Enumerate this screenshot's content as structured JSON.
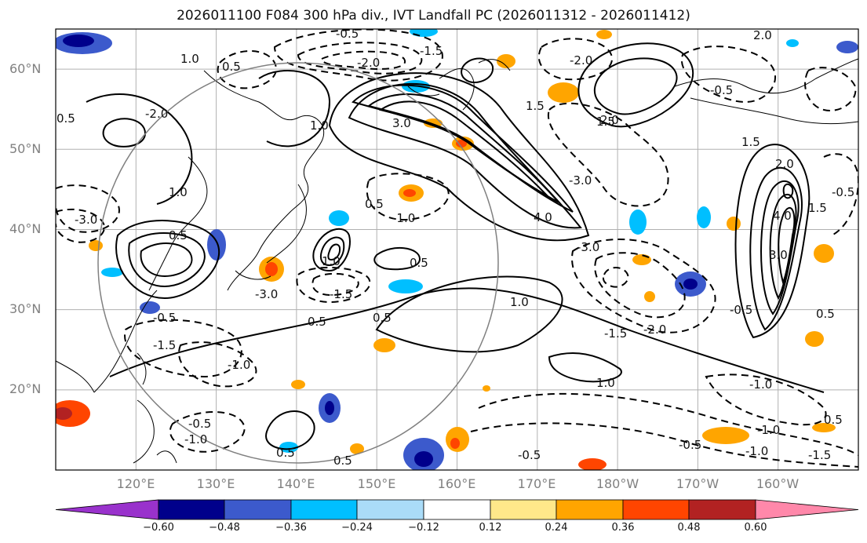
{
  "title": "2026011100 F084 300 hPa div., IVT Landfall PC (2026011312 - 2026011412)",
  "map": {
    "region": "North Pacific",
    "lat_range": [
      10,
      65
    ],
    "lon_range": [
      110,
      210
    ],
    "grid": true,
    "coastlines": true
  },
  "lat_ticks": [
    "60°N",
    "50°N",
    "40°N",
    "30°N",
    "20°N"
  ],
  "lon_ticks": [
    "120°E",
    "130°E",
    "140°E",
    "150°E",
    "160°E",
    "170°E",
    "180°W",
    "170°W",
    "160°W"
  ],
  "colorbar": {
    "ticks": [
      "−0.60",
      "−0.48",
      "−0.36",
      "−0.24",
      "−0.12",
      "0.12",
      "0.24",
      "0.36",
      "0.48",
      "0.60"
    ],
    "colors": [
      "#9932cc",
      "#00008b",
      "#3c5acc",
      "#00bfff",
      "#aadcf8",
      "#ffffff",
      "#ffe88a",
      "#ffa500",
      "#ff4500",
      "#b22222",
      "#ff88aa"
    ]
  },
  "contour_labels": [
    "-0.5",
    "0.5",
    "-1.0",
    "1.0",
    "-1.5",
    "1.5",
    "-2.0",
    "2.0",
    "-3.0",
    "3.0",
    "4.0"
  ]
}
